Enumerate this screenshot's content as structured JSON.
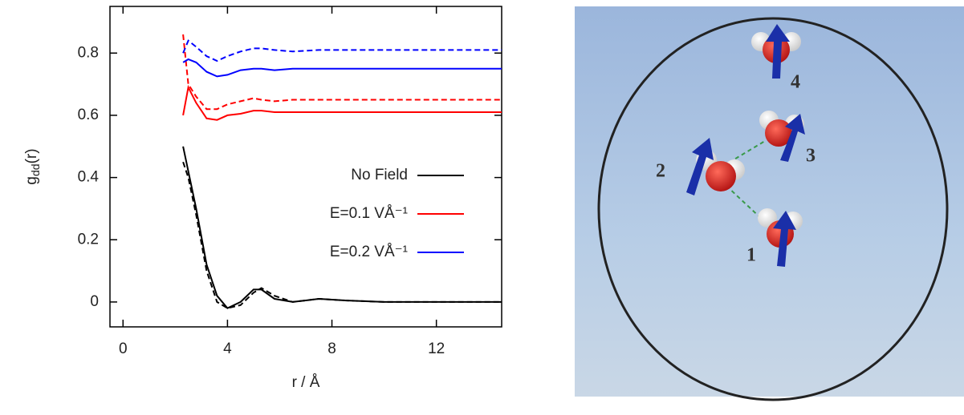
{
  "chart_data": {
    "type": "line",
    "xlabel": "r / Å",
    "ylabel": {
      "text": "g",
      "subscript": "dd",
      "suffix": "(r)"
    },
    "x": [
      2.3,
      2.5,
      2.8,
      3.2,
      3.6,
      4.0,
      4.5,
      5.0,
      5.3,
      5.8,
      6.5,
      7.5,
      8.5,
      10,
      12,
      14.5
    ],
    "series": [
      {
        "name": "No Field",
        "color": "#000000",
        "style": "solid",
        "values": [
          0.5,
          0.42,
          0.3,
          0.12,
          0.02,
          -0.02,
          0.0,
          0.04,
          0.04,
          0.01,
          0.0,
          0.01,
          0.005,
          0,
          0,
          0
        ]
      },
      {
        "name": "No Field",
        "color": "#000000",
        "style": "dashed",
        "values": [
          0.45,
          0.4,
          0.28,
          0.1,
          0.0,
          -0.02,
          -0.01,
          0.03,
          0.045,
          0.02,
          0.0,
          0.01,
          0.005,
          0,
          0,
          0
        ]
      },
      {
        "name": "E=0.1 VÅ⁻¹",
        "color": "#ff0000",
        "style": "solid",
        "values": [
          0.6,
          0.69,
          0.64,
          0.59,
          0.585,
          0.6,
          0.605,
          0.615,
          0.615,
          0.61,
          0.61,
          0.61,
          0.61,
          0.61,
          0.61,
          0.61
        ]
      },
      {
        "name": "E=0.1 VÅ⁻¹",
        "color": "#ff0000",
        "style": "dashed",
        "values": [
          0.86,
          0.7,
          0.66,
          0.62,
          0.62,
          0.635,
          0.645,
          0.655,
          0.65,
          0.645,
          0.65,
          0.65,
          0.65,
          0.65,
          0.65,
          0.65
        ]
      },
      {
        "name": "E=0.2 VÅ⁻¹",
        "color": "#0000ff",
        "style": "solid",
        "values": [
          0.77,
          0.78,
          0.77,
          0.74,
          0.725,
          0.73,
          0.745,
          0.75,
          0.75,
          0.745,
          0.75,
          0.75,
          0.75,
          0.75,
          0.75,
          0.75
        ]
      },
      {
        "name": "E=0.2 VÅ⁻¹",
        "color": "#0000ff",
        "style": "dashed",
        "values": [
          0.8,
          0.84,
          0.82,
          0.79,
          0.775,
          0.79,
          0.805,
          0.815,
          0.815,
          0.81,
          0.805,
          0.81,
          0.81,
          0.81,
          0.81,
          0.81
        ]
      }
    ],
    "xlim": [
      -0.5,
      14.5
    ],
    "ylim": [
      -0.08,
      0.95
    ],
    "xticks": [
      0,
      4,
      8,
      12
    ],
    "yticks": [
      0,
      0.2,
      0.4,
      0.6,
      0.8
    ],
    "legend": "right"
  },
  "illustration": {
    "labels": [
      "1",
      "2",
      "3",
      "4"
    ]
  }
}
